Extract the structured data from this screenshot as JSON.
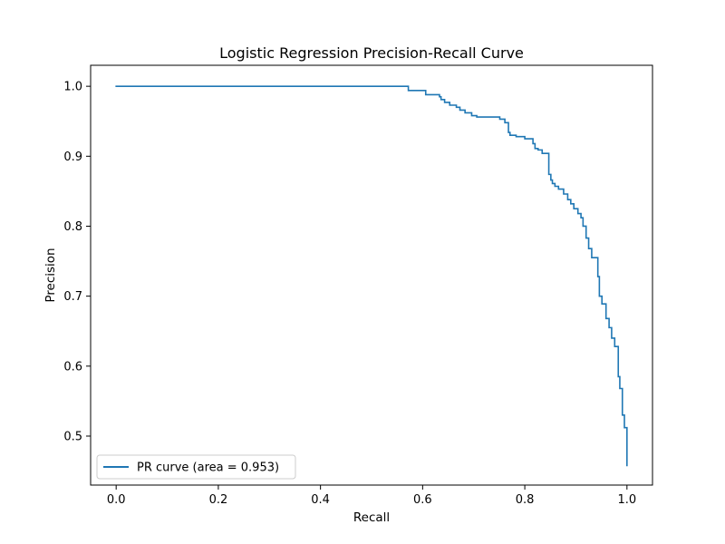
{
  "chart_data": {
    "type": "line",
    "title": "Logistic Regression Precision-Recall Curve",
    "xlabel": "Recall",
    "ylabel": "Precision",
    "xlim": [
      -0.05,
      1.05
    ],
    "ylim": [
      0.43,
      1.03
    ],
    "xticks": [
      0.0,
      0.2,
      0.4,
      0.6,
      0.8,
      1.0
    ],
    "xtick_labels": [
      "0.0",
      "0.2",
      "0.4",
      "0.6",
      "0.8",
      "1.0"
    ],
    "yticks": [
      0.5,
      0.6,
      0.7,
      0.8,
      0.9,
      1.0
    ],
    "ytick_labels": [
      "0.5",
      "0.6",
      "0.7",
      "0.8",
      "0.9",
      "1.0"
    ],
    "grid": false,
    "legend": {
      "placement": "lower-left"
    },
    "series": [
      {
        "name": "PR curve (area = 0.953)",
        "color": "#1f77b4",
        "x": [
          0.0,
          0.572,
          0.572,
          0.606,
          0.606,
          0.633,
          0.633,
          0.636,
          0.636,
          0.643,
          0.643,
          0.653,
          0.653,
          0.666,
          0.666,
          0.673,
          0.673,
          0.683,
          0.683,
          0.696,
          0.696,
          0.706,
          0.706,
          0.751,
          0.751,
          0.761,
          0.761,
          0.768,
          0.768,
          0.771,
          0.771,
          0.783,
          0.783,
          0.8,
          0.8,
          0.816,
          0.816,
          0.82,
          0.82,
          0.826,
          0.826,
          0.834,
          0.834,
          0.847,
          0.847,
          0.851,
          0.851,
          0.854,
          0.854,
          0.859,
          0.859,
          0.866,
          0.866,
          0.876,
          0.876,
          0.884,
          0.884,
          0.89,
          0.89,
          0.896,
          0.896,
          0.904,
          0.904,
          0.91,
          0.91,
          0.914,
          0.914,
          0.92,
          0.92,
          0.925,
          0.925,
          0.931,
          0.931,
          0.943,
          0.943,
          0.946,
          0.946,
          0.951,
          0.951,
          0.959,
          0.959,
          0.965,
          0.965,
          0.97,
          0.97,
          0.976,
          0.976,
          0.983,
          0.983,
          0.986,
          0.986,
          0.991,
          0.991,
          0.995,
          0.995,
          1.0,
          1.0
        ],
        "y": [
          1.0,
          1.0,
          0.994,
          0.994,
          0.988,
          0.988,
          0.985,
          0.985,
          0.981,
          0.981,
          0.977,
          0.977,
          0.973,
          0.973,
          0.97,
          0.97,
          0.966,
          0.966,
          0.962,
          0.962,
          0.958,
          0.958,
          0.956,
          0.956,
          0.953,
          0.953,
          0.948,
          0.948,
          0.934,
          0.934,
          0.93,
          0.93,
          0.928,
          0.928,
          0.925,
          0.925,
          0.918,
          0.918,
          0.911,
          0.911,
          0.909,
          0.909,
          0.904,
          0.904,
          0.874,
          0.874,
          0.866,
          0.866,
          0.861,
          0.861,
          0.857,
          0.857,
          0.853,
          0.853,
          0.846,
          0.846,
          0.838,
          0.838,
          0.832,
          0.832,
          0.825,
          0.825,
          0.818,
          0.818,
          0.812,
          0.812,
          0.8,
          0.8,
          0.783,
          0.783,
          0.768,
          0.768,
          0.755,
          0.755,
          0.728,
          0.728,
          0.7,
          0.7,
          0.689,
          0.689,
          0.668,
          0.668,
          0.655,
          0.655,
          0.64,
          0.64,
          0.628,
          0.628,
          0.585,
          0.585,
          0.568,
          0.568,
          0.53,
          0.53,
          0.512,
          0.512,
          0.458
        ]
      }
    ]
  }
}
